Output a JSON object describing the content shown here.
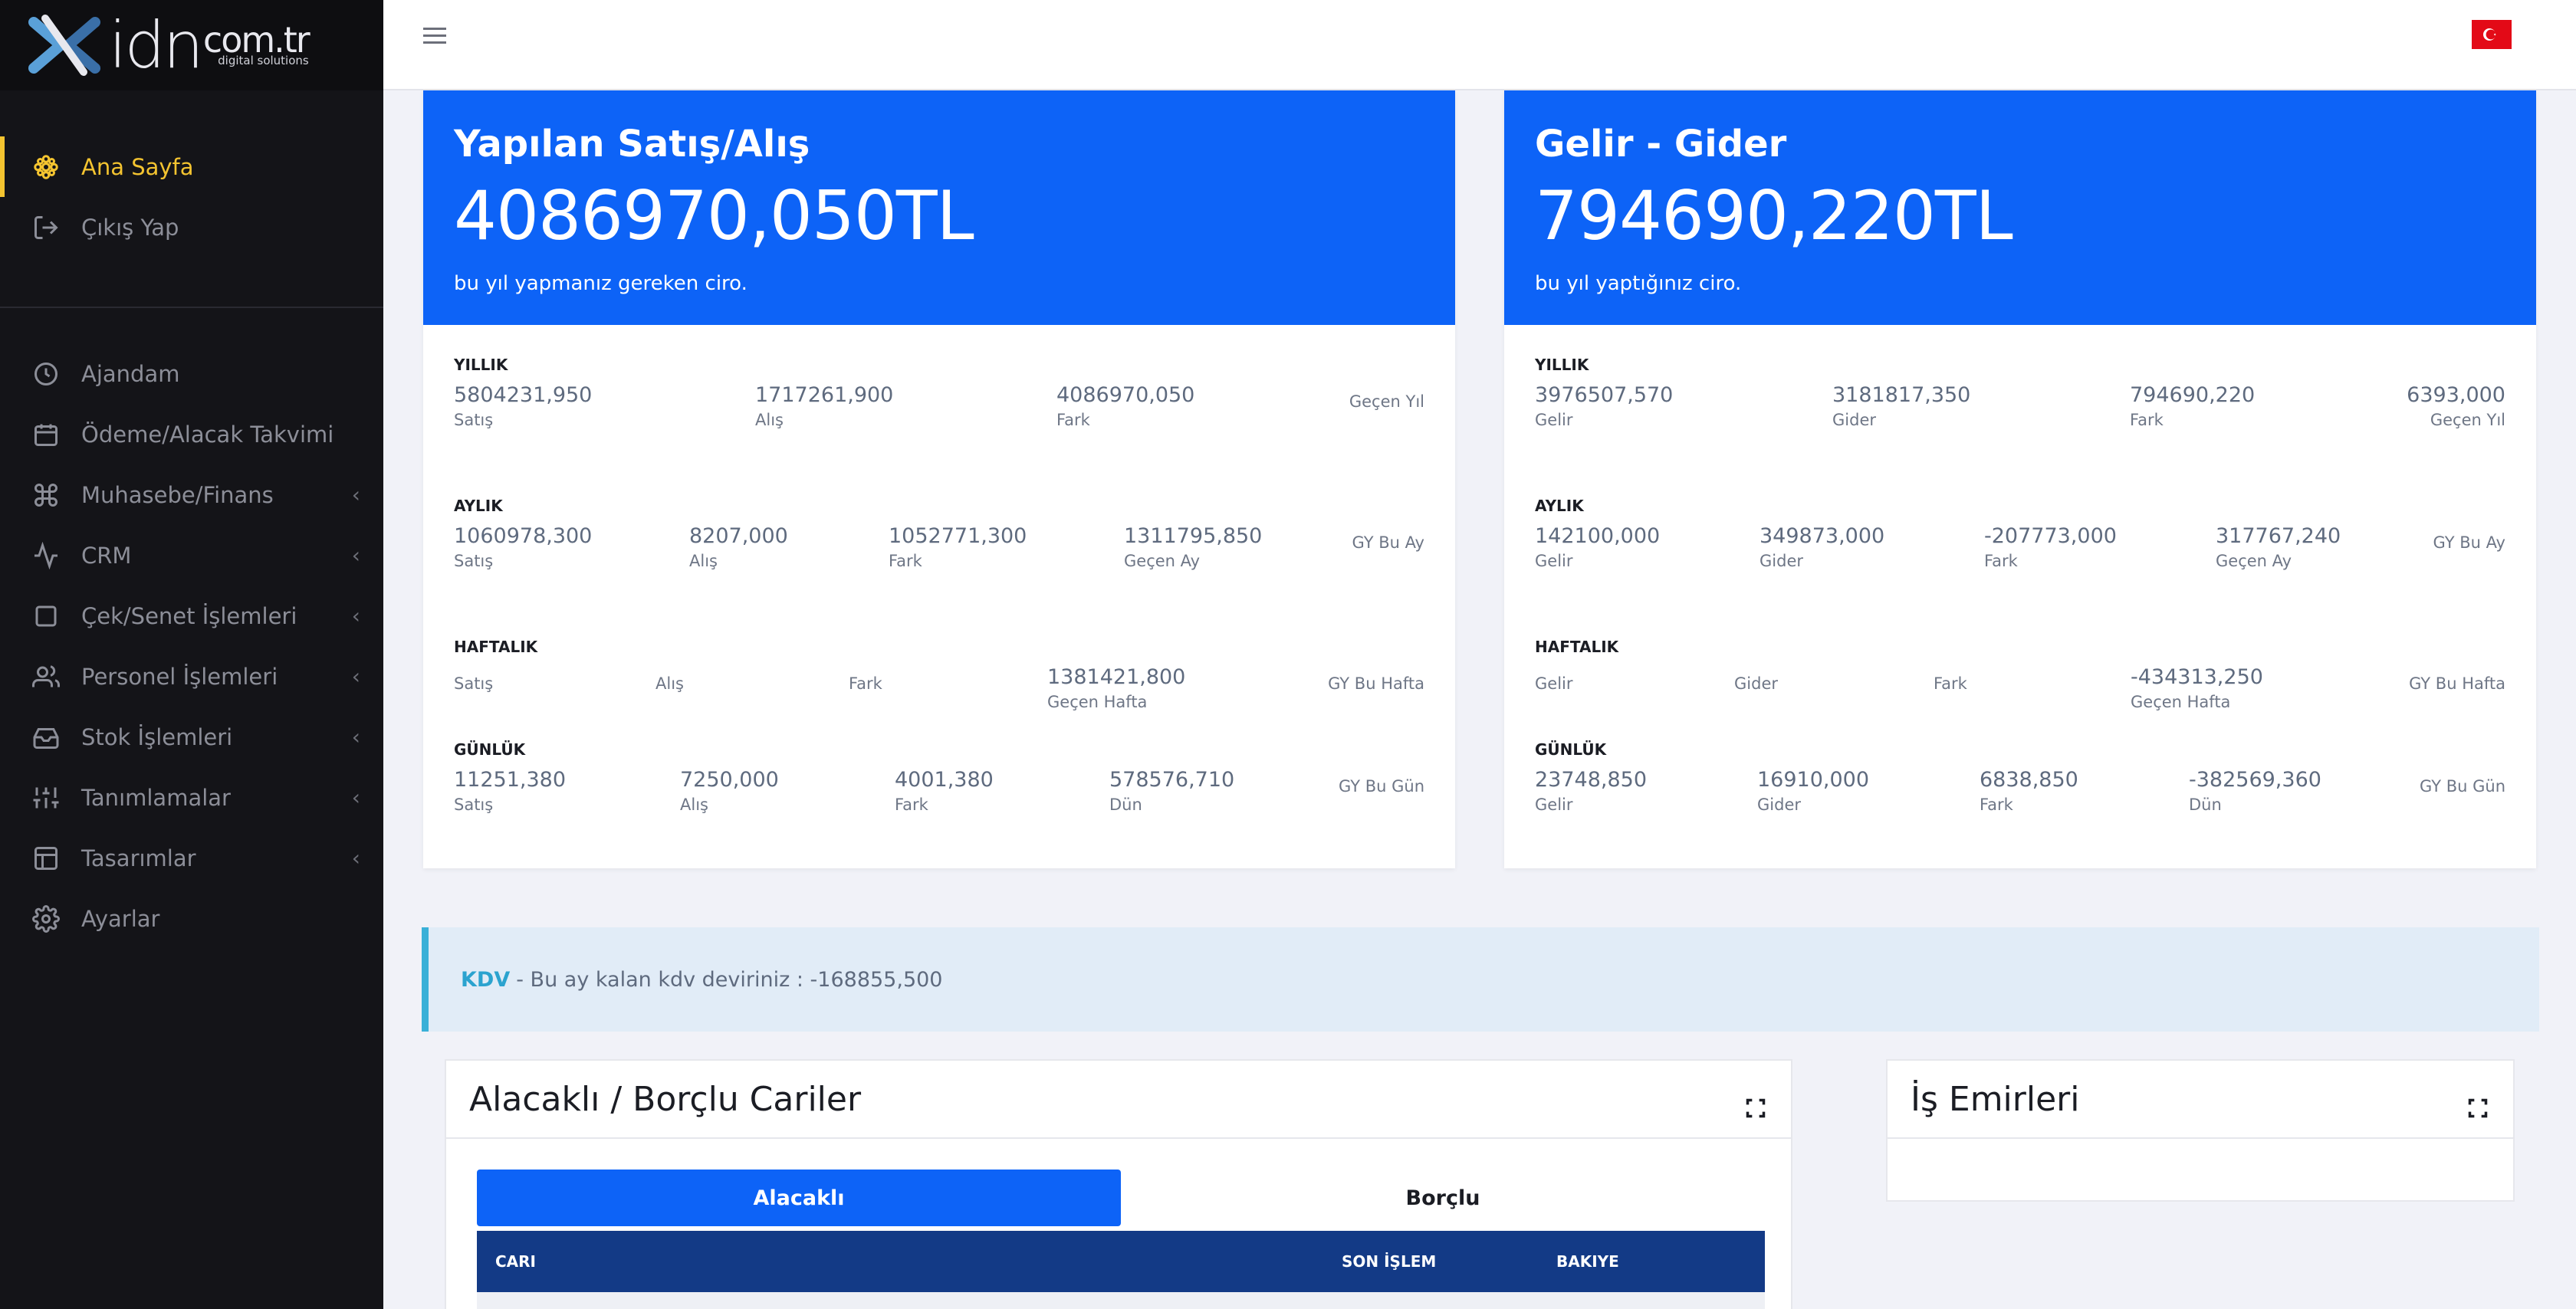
{
  "brand": {
    "logo_main": "idn",
    "logo_domain": "com.tr",
    "logo_tagline": "digital solutions"
  },
  "sidebar": {
    "top_items": [
      {
        "label": "Ana Sayfa",
        "icon": "flower-icon",
        "active": true
      },
      {
        "label": "Çıkış Yap",
        "icon": "logout-icon"
      }
    ],
    "items": [
      {
        "label": "Ajandam",
        "icon": "clock-icon"
      },
      {
        "label": "Ödeme/Alacak Takvimi",
        "icon": "calendar-icon"
      },
      {
        "label": "Muhasebe/Finans",
        "icon": "command-icon",
        "expandable": true
      },
      {
        "label": "CRM",
        "icon": "activity-icon",
        "expandable": true
      },
      {
        "label": "Çek/Senet İşlemleri",
        "icon": "square-icon",
        "expandable": true
      },
      {
        "label": "Personel İşlemleri",
        "icon": "users-icon",
        "expandable": true
      },
      {
        "label": "Stok İşlemleri",
        "icon": "inbox-icon",
        "expandable": true
      },
      {
        "label": "Tanımlamalar",
        "icon": "sliders-icon",
        "expandable": true
      },
      {
        "label": "Tasarımlar",
        "icon": "layout-icon",
        "expandable": true
      },
      {
        "label": "Ayarlar",
        "icon": "settings-icon"
      }
    ],
    "colors": {
      "active": "#f4c430",
      "background": "#141418"
    }
  },
  "topbar": {
    "flag": "Turkey",
    "flag_color": "#e30a17"
  },
  "sales_card": {
    "title": "Yapılan Satış/Alış",
    "amount": "4086970,050TL",
    "desc": "bu yıl yapmanız gereken ciro.",
    "yearly": {
      "label": "YILLIK",
      "v1": "5804231,950",
      "l1": "Satış",
      "v2": "1717261,900",
      "l2": "Alış",
      "v3": "4086970,050",
      "l3": "Fark",
      "right": "Geçen Yıl"
    },
    "monthly": {
      "label": "AYLIK",
      "v1": "1060978,300",
      "l1": "Satış",
      "v2": "8207,000",
      "l2": "Alış",
      "v3": "1052771,300",
      "l3": "Fark",
      "v4": "1311795,850",
      "l4": "Geçen Ay",
      "right": "GY Bu Ay"
    },
    "weekly": {
      "label": "HAFTALIK",
      "l1": "Satış",
      "l2": "Alış",
      "l3": "Fark",
      "v4": "1381421,800",
      "l4": "Geçen Hafta",
      "right": "GY Bu Hafta"
    },
    "daily": {
      "label": "GÜNLÜK",
      "v1": "11251,380",
      "l1": "Satış",
      "v2": "7250,000",
      "l2": "Alış",
      "v3": "4001,380",
      "l3": "Fark",
      "v4": "578576,710",
      "l4": "Dün",
      "right": "GY Bu Gün"
    }
  },
  "income_card": {
    "title": "Gelir - Gider",
    "amount": "794690,220TL",
    "desc": "bu yıl yaptığınız ciro.",
    "yearly": {
      "label": "YILLIK",
      "v1": "3976507,570",
      "l1": "Gelir",
      "v2": "3181817,350",
      "l2": "Gider",
      "v3": "794690,220",
      "l3": "Fark",
      "v4": "6393,000",
      "l4": "Geçen Yıl"
    },
    "monthly": {
      "label": "AYLIK",
      "v1": "142100,000",
      "l1": "Gelir",
      "v2": "349873,000",
      "l2": "Gider",
      "v3": "-207773,000",
      "l3": "Fark",
      "v4": "317767,240",
      "l4": "Geçen Ay",
      "right": "GY Bu Ay"
    },
    "weekly": {
      "label": "HAFTALIK",
      "l1": "Gelir",
      "l2": "Gider",
      "l3": "Fark",
      "v4": "-434313,250",
      "l4": "Geçen Hafta",
      "right": "GY Bu Hafta"
    },
    "daily": {
      "label": "GÜNLÜK",
      "v1": "23748,850",
      "l1": "Gelir",
      "v2": "16910,000",
      "l2": "Gider",
      "v3": "6838,850",
      "l3": "Fark",
      "v4": "-382569,360",
      "l4": "Dün",
      "right": "GY Bu Gün"
    }
  },
  "kdv": {
    "tag": "KDV",
    "text": "- Bu ay kalan kdv deviriniz : -168855,500"
  },
  "cariler": {
    "title": "Alacaklı / Borçlu Cariler",
    "tabs": [
      "Alacaklı",
      "Borçlu"
    ],
    "columns": [
      "CARI",
      "SON İŞLEM",
      "BAKIYE"
    ]
  },
  "is_emirleri": {
    "title": "İş Emirleri"
  },
  "colors": {
    "primary": "#0d63f7",
    "table_header": "#133a86",
    "kdv_accent": "#3ab0d8"
  }
}
